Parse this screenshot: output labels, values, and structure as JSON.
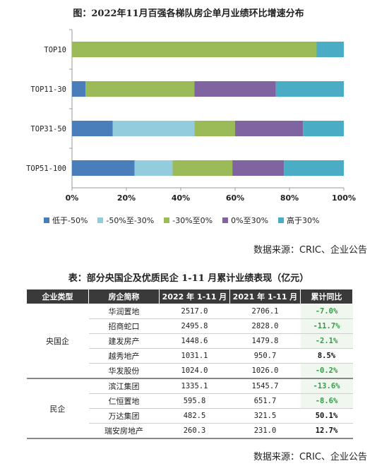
{
  "chart_data": {
    "type": "bar",
    "orientation": "horizontal-stacked-percent",
    "title": "图：2022年11月百强各梯队房企单月业绩环比增速分布",
    "categories": [
      "TOP10",
      "TOP11-30",
      "TOP31-50",
      "TOP51-100"
    ],
    "series": [
      {
        "name": "低于-50%",
        "color": "#4a7ebb",
        "values": [
          0,
          5,
          15,
          23
        ]
      },
      {
        "name": "-50%至-30%",
        "color": "#93cddd",
        "values": [
          0,
          0,
          30,
          14
        ]
      },
      {
        "name": "-30%至0%",
        "color": "#9bbb59",
        "values": [
          90,
          40,
          15,
          22
        ]
      },
      {
        "name": "0%至30%",
        "color": "#8064a2",
        "values": [
          0,
          30,
          25,
          19
        ]
      },
      {
        "name": "高于30%",
        "color": "#4bacc6",
        "values": [
          10,
          25,
          15,
          22
        ]
      }
    ],
    "xlim": [
      0,
      100
    ],
    "xticks": [
      "0%",
      "20%",
      "40%",
      "60%",
      "80%",
      "100%"
    ],
    "legend": "bottom",
    "grid": false
  },
  "chart_source": "数据来源：CRIC、企业公告",
  "table": {
    "title": "表：部分央国企及优质民企 1-11 月累计业绩表现（亿元）",
    "headers": [
      "企业类型",
      "房企简称",
      "2022 年 1-11 月",
      "2021 年 1-11 月",
      "累计同比"
    ],
    "groups": [
      {
        "type": "央国企",
        "rows": [
          {
            "name": "华润置地",
            "y2022": "2517.0",
            "y2021": "2706.1",
            "yoy": "-7.0%",
            "trend": "neg"
          },
          {
            "name": "招商蛇口",
            "y2022": "2495.8",
            "y2021": "2828.0",
            "yoy": "-11.7%",
            "trend": "neg"
          },
          {
            "name": "建发房产",
            "y2022": "1448.6",
            "y2021": "1479.8",
            "yoy": "-2.1%",
            "trend": "neg"
          },
          {
            "name": "越秀地产",
            "y2022": "1031.1",
            "y2021": "950.7",
            "yoy": "8.5%",
            "trend": "pos"
          },
          {
            "name": "华发股份",
            "y2022": "1024.0",
            "y2021": "1026.0",
            "yoy": "-0.2%",
            "trend": "neg"
          }
        ]
      },
      {
        "type": "民企",
        "rows": [
          {
            "name": "滨江集团",
            "y2022": "1335.1",
            "y2021": "1545.7",
            "yoy": "-13.6%",
            "trend": "neg"
          },
          {
            "name": "仁恒置地",
            "y2022": "595.8",
            "y2021": "651.7",
            "yoy": "-8.6%",
            "trend": "neg"
          },
          {
            "name": "万达集团",
            "y2022": "482.5",
            "y2021": "321.5",
            "yoy": "50.1%",
            "trend": "pos"
          },
          {
            "name": "瑞安房地产",
            "y2022": "260.3",
            "y2021": "231.0",
            "yoy": "12.7%",
            "trend": "pos"
          }
        ]
      }
    ],
    "source": "数据来源：CRIC、企业公告"
  }
}
